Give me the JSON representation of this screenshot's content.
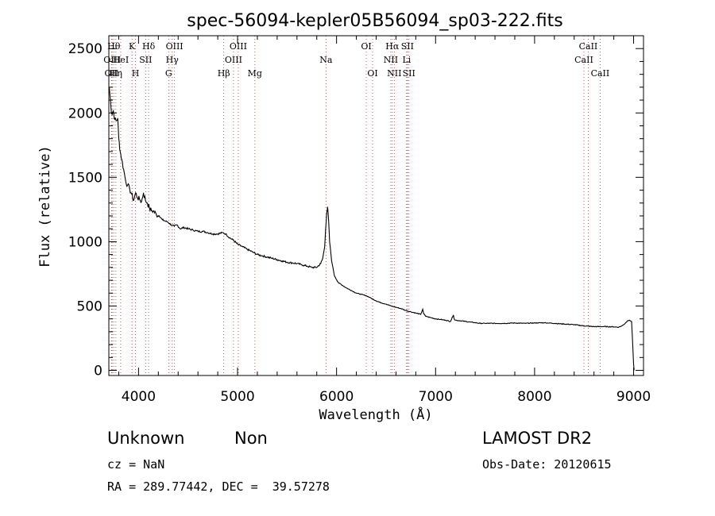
{
  "chart_data": {
    "type": "line",
    "title": "spec-56094-kepler05B56094_sp03-222.fits",
    "xlabel": "Wavelength (Å)",
    "ylabel": "Flux (relative)",
    "xlim": [
      3700,
      9100
    ],
    "ylim": [
      -40,
      2600
    ],
    "xticks": [
      4000,
      5000,
      6000,
      7000,
      8000,
      9000
    ],
    "yticks": [
      0,
      500,
      1000,
      1500,
      2000,
      2500
    ],
    "series": [
      {
        "x": [
          3705,
          3720,
          3730,
          3745,
          3760,
          3775,
          3790,
          3800,
          3815,
          3830,
          3850,
          3870,
          3890,
          3910,
          3930,
          3950,
          3970,
          3990,
          4010,
          4030,
          4050,
          4070,
          4090,
          4110,
          4130,
          4150,
          4180,
          4210,
          4240,
          4270,
          4300,
          4330,
          4360,
          4390,
          4420,
          4460,
          4500,
          4550,
          4600,
          4650,
          4700,
          4750,
          4800,
          4850,
          4880,
          4920,
          4960,
          5000,
          5050,
          5100,
          5150,
          5200,
          5250,
          5300,
          5350,
          5400,
          5450,
          5500,
          5550,
          5600,
          5650,
          5700,
          5750,
          5800,
          5840,
          5860,
          5880,
          5890,
          5900,
          5910,
          5920,
          5930,
          5950,
          5980,
          6020,
          6060,
          6100,
          6150,
          6200,
          6250,
          6300,
          6350,
          6400,
          6450,
          6500,
          6550,
          6600,
          6650,
          6700,
          6750,
          6800,
          6850,
          6870,
          6880,
          6900,
          6950,
          7000,
          7050,
          7100,
          7150,
          7180,
          7190,
          7200,
          7250,
          7300,
          7350,
          7400,
          7450,
          7500,
          7600,
          7700,
          7800,
          7900,
          8000,
          8100,
          8200,
          8300,
          8400,
          8500,
          8600,
          8700,
          8800,
          8850,
          8880,
          8900,
          8920,
          8940,
          8960,
          8980,
          9000,
          9005
        ],
        "y": [
          2200,
          2060,
          1990,
          2020,
          1950,
          1940,
          1960,
          1800,
          1700,
          1640,
          1560,
          1470,
          1440,
          1410,
          1370,
          1320,
          1380,
          1340,
          1330,
          1310,
          1380,
          1320,
          1300,
          1260,
          1240,
          1240,
          1210,
          1200,
          1170,
          1160,
          1150,
          1130,
          1120,
          1130,
          1100,
          1110,
          1100,
          1090,
          1080,
          1080,
          1070,
          1060,
          1060,
          1070,
          1060,
          1030,
          1010,
          980,
          960,
          940,
          920,
          900,
          890,
          880,
          870,
          860,
          850,
          840,
          835,
          830,
          820,
          810,
          800,
          800,
          830,
          870,
          960,
          1100,
          1220,
          1270,
          1160,
          1000,
          850,
          730,
          680,
          660,
          640,
          620,
          600,
          590,
          580,
          560,
          540,
          525,
          515,
          500,
          490,
          480,
          465,
          455,
          445,
          435,
          475,
          440,
          420,
          410,
          400,
          395,
          390,
          380,
          430,
          395,
          390,
          385,
          380,
          375,
          370,
          365,
          365,
          365,
          365,
          368,
          365,
          368,
          370,
          365,
          360,
          355,
          345,
          340,
          340,
          338,
          335,
          345,
          355,
          370,
          385,
          390,
          380,
          50,
          0
        ]
      }
    ],
    "line_markers": [
      {
        "wave": 3727,
        "label": "OII",
        "row": 3
      },
      {
        "wave": 3734,
        "label": "OIII",
        "row": 2
      },
      {
        "wave": 3750,
        "label": "Hθ",
        "row": 1
      },
      {
        "wave": 3771,
        "label": "Hη",
        "row": 3
      },
      {
        "wave": 3820,
        "label": "HeI",
        "row": 2
      },
      {
        "wave": 3934,
        "label": "K",
        "row": 1
      },
      {
        "wave": 3969,
        "label": "H",
        "row": 3
      },
      {
        "wave": 4072,
        "label": "SII",
        "row": 2
      },
      {
        "wave": 4102,
        "label": "Hδ",
        "row": 1
      },
      {
        "wave": 4304,
        "label": "G",
        "row": 3
      },
      {
        "wave": 4340,
        "label": "Hγ",
        "row": 2
      },
      {
        "wave": 4363,
        "label": "OIII",
        "row": 1
      },
      {
        "wave": 4861,
        "label": "Hβ",
        "row": 3
      },
      {
        "wave": 4959,
        "label": "OIII",
        "row": 2
      },
      {
        "wave": 5007,
        "label": "OIII",
        "row": 1
      },
      {
        "wave": 5175,
        "label": "Mg",
        "row": 3
      },
      {
        "wave": 5893,
        "label": "Na",
        "row": 2
      },
      {
        "wave": 6300,
        "label": "OI",
        "row": 1
      },
      {
        "wave": 6364,
        "label": "OI",
        "row": 3
      },
      {
        "wave": 6548,
        "label": "NII",
        "row": 2
      },
      {
        "wave": 6563,
        "label": "Hα",
        "row": 1
      },
      {
        "wave": 6583,
        "label": "NII",
        "row": 3
      },
      {
        "wave": 6708,
        "label": "Li",
        "row": 2
      },
      {
        "wave": 6716,
        "label": "SII",
        "row": 1
      },
      {
        "wave": 6731,
        "label": "SII",
        "row": 3
      },
      {
        "wave": 8498,
        "label": "CaII",
        "row": 2
      },
      {
        "wave": 8542,
        "label": "CaII",
        "row": 1
      },
      {
        "wave": 8662,
        "label": "CaII",
        "row": 3
      }
    ]
  },
  "info": {
    "class_label": "Unknown",
    "subclass_label": "Non",
    "survey": "LAMOST DR2",
    "cz": "cz = NaN",
    "obs_date": "Obs-Date: 20120615",
    "coords": "RA = 289.77442, DEC =  39.57278"
  }
}
